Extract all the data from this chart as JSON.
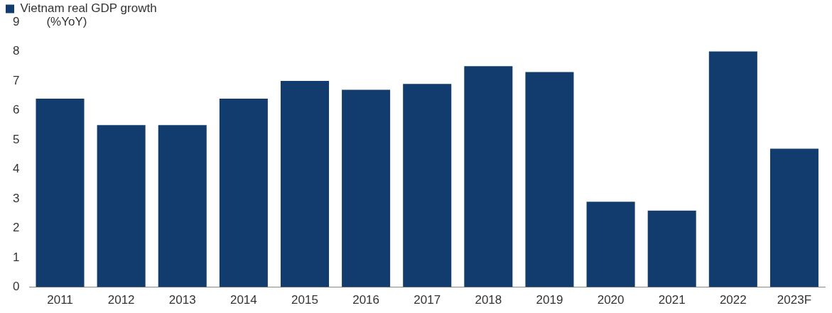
{
  "chart_data": {
    "type": "bar",
    "ylabel": "(%YoY)",
    "categories": [
      "2011",
      "2012",
      "2013",
      "2014",
      "2015",
      "2016",
      "2017",
      "2018",
      "2019",
      "2020",
      "2021",
      "2022",
      "2023F"
    ],
    "series": [
      {
        "name": "Vietnam real GDP growth",
        "color": "#123c6e",
        "values": [
          6.4,
          5.5,
          5.5,
          6.4,
          7.0,
          6.7,
          6.9,
          7.5,
          7.3,
          2.9,
          2.6,
          8.0,
          4.7
        ]
      }
    ],
    "ylim": [
      0,
      9
    ],
    "yticks": [
      0,
      1,
      2,
      3,
      4,
      5,
      6,
      7,
      8,
      9
    ],
    "grid": false,
    "legend": "top"
  }
}
